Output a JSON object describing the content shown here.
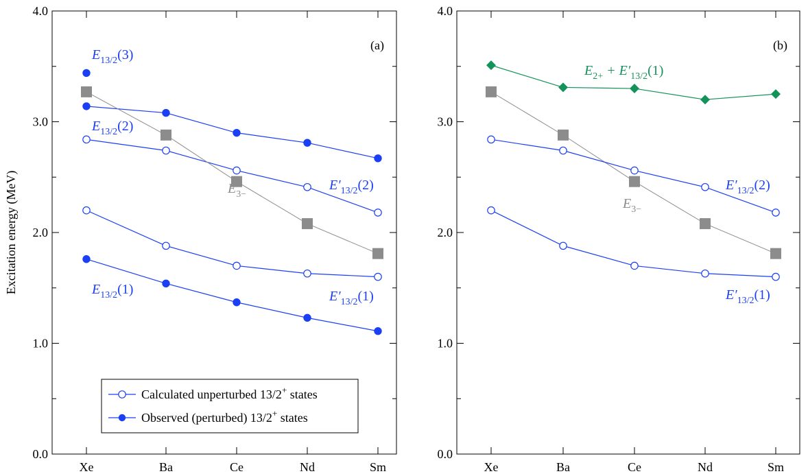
{
  "figure": {
    "ylabel": "Excitation energy (MeV)"
  },
  "chart_data": [
    {
      "type": "line",
      "panel_label": "(a)",
      "categories": [
        "Xe",
        "Ba",
        "Ce",
        "Nd",
        "Sm"
      ],
      "ylim": [
        0,
        4
      ],
      "yticks": [
        "0.0",
        "1.0",
        "2.0",
        "3.0",
        "4.0"
      ],
      "ylabel": "Excitation energy (MeV)",
      "grid": false,
      "legend_placement": "bottom-left",
      "legend": [
        {
          "label": "Calculated unperturbed 13/2",
          "sup": "+",
          "suffix": " states",
          "marker": "open-circle"
        },
        {
          "label": "Observed (perturbed) 13/2",
          "sup": "+",
          "suffix": " states",
          "marker": "filled-circle"
        }
      ],
      "series": [
        {
          "values": [
            2.84,
            2.74,
            2.56,
            2.41,
            2.18
          ],
          "marker": "open-circle",
          "color": "#1a3ff5"
        },
        {
          "values": [
            2.2,
            1.88,
            1.7,
            1.63,
            1.6
          ],
          "marker": "open-circle",
          "color": "#1a3ff5"
        },
        {
          "values": [
            3.14,
            3.08,
            2.9,
            2.81,
            2.67
          ],
          "marker": "filled-circle",
          "color": "#1a3ff5"
        },
        {
          "values": [
            1.76,
            1.54,
            1.37,
            1.23,
            1.11
          ],
          "marker": "filled-circle",
          "color": "#1a3ff5"
        },
        {
          "values": [
            3.44,
            null,
            null,
            null,
            null
          ],
          "marker": "filled-circle",
          "color": "#1a3ff5"
        },
        {
          "values": [
            3.27,
            2.88,
            2.46,
            2.08,
            1.81
          ],
          "marker": "square",
          "color": "#8c8c8c"
        }
      ],
      "annotations": [
        {
          "main": "E",
          "sub": "13/2",
          "tail": "(3)",
          "prime": false,
          "color": "#1a3ff5"
        },
        {
          "main": "E",
          "sub": "13/2",
          "tail": "(2)",
          "prime": false,
          "color": "#1a3ff5"
        },
        {
          "main": "E",
          "sub": "13/2",
          "tail": "(1)",
          "prime": false,
          "color": "#1a3ff5"
        },
        {
          "main": "E′",
          "sub": "13/2",
          "tail": "(2)",
          "prime": true,
          "color": "#1a3ff5"
        },
        {
          "main": "E′",
          "sub": "13/2",
          "tail": "(1)",
          "prime": true,
          "color": "#1a3ff5"
        },
        {
          "main": "E",
          "sub": "3−",
          "tail": "",
          "prime": false,
          "color": "#8c8c8c"
        }
      ]
    },
    {
      "type": "line",
      "panel_label": "(b)",
      "categories": [
        "Xe",
        "Ba",
        "Ce",
        "Nd",
        "Sm"
      ],
      "ylim": [
        0,
        4
      ],
      "yticks": [
        "0.0",
        "1.0",
        "2.0",
        "3.0",
        "4.0"
      ],
      "grid": false,
      "series": [
        {
          "values": [
            3.51,
            3.31,
            3.3,
            3.2,
            3.25
          ],
          "marker": "diamond",
          "color": "#13925a"
        },
        {
          "values": [
            3.27,
            2.88,
            2.46,
            2.08,
            1.81
          ],
          "marker": "square",
          "color": "#8c8c8c"
        },
        {
          "values": [
            2.84,
            2.74,
            2.56,
            2.41,
            2.18
          ],
          "marker": "open-circle",
          "color": "#1a3ff5"
        },
        {
          "values": [
            2.2,
            1.88,
            1.7,
            1.63,
            1.6
          ],
          "marker": "open-circle",
          "color": "#1a3ff5"
        }
      ],
      "annotations": [
        {
          "main": "E",
          "sub": "2+",
          "tail": " + E′",
          "sub2": "13/2",
          "tail2": "(1)",
          "color": "#13925a"
        },
        {
          "main": "E′",
          "sub": "13/2",
          "tail": "(2)",
          "color": "#1a3ff5"
        },
        {
          "main": "E",
          "sub": "3−",
          "tail": "",
          "color": "#8c8c8c"
        },
        {
          "main": "E′",
          "sub": "13/2",
          "tail": "(1)",
          "color": "#1a3ff5"
        }
      ]
    }
  ]
}
